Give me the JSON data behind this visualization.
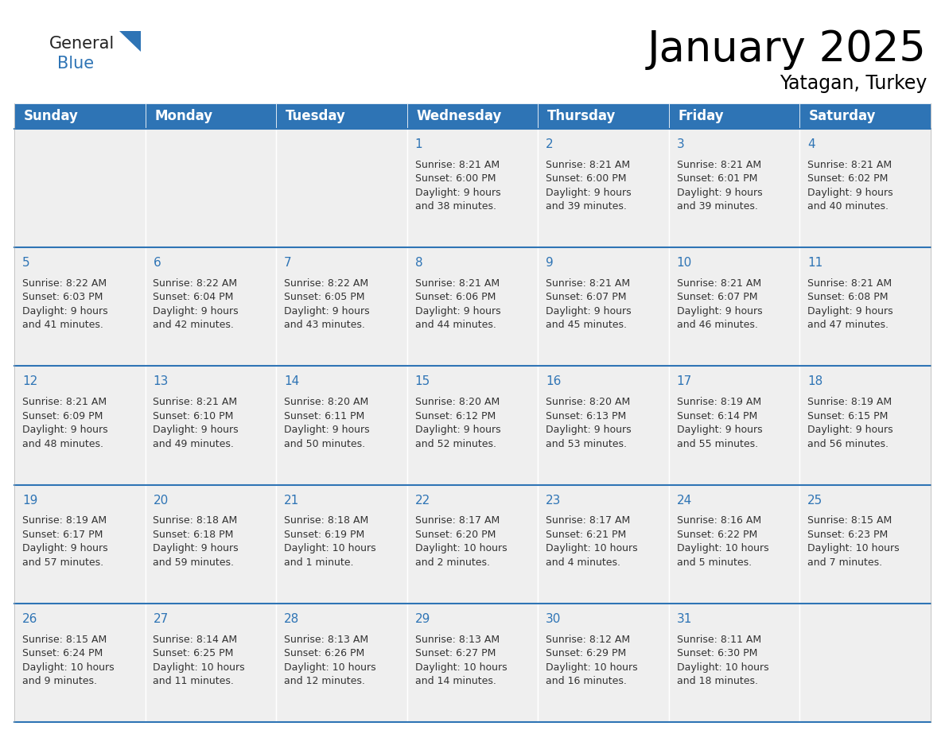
{
  "title": "January 2025",
  "subtitle": "Yatagan, Turkey",
  "days_of_week": [
    "Sunday",
    "Monday",
    "Tuesday",
    "Wednesday",
    "Thursday",
    "Friday",
    "Saturday"
  ],
  "header_bg": "#2E74B5",
  "header_text": "#FFFFFF",
  "cell_bg": "#EFEFEF",
  "row_border_color": "#2E74B5",
  "text_color": "#333333",
  "day_number_color": "#2E74B5",
  "calendar_data": [
    [
      "",
      "",
      "",
      "1\nSunrise: 8:21 AM\nSunset: 6:00 PM\nDaylight: 9 hours\nand 38 minutes.",
      "2\nSunrise: 8:21 AM\nSunset: 6:00 PM\nDaylight: 9 hours\nand 39 minutes.",
      "3\nSunrise: 8:21 AM\nSunset: 6:01 PM\nDaylight: 9 hours\nand 39 minutes.",
      "4\nSunrise: 8:21 AM\nSunset: 6:02 PM\nDaylight: 9 hours\nand 40 minutes."
    ],
    [
      "5\nSunrise: 8:22 AM\nSunset: 6:03 PM\nDaylight: 9 hours\nand 41 minutes.",
      "6\nSunrise: 8:22 AM\nSunset: 6:04 PM\nDaylight: 9 hours\nand 42 minutes.",
      "7\nSunrise: 8:22 AM\nSunset: 6:05 PM\nDaylight: 9 hours\nand 43 minutes.",
      "8\nSunrise: 8:21 AM\nSunset: 6:06 PM\nDaylight: 9 hours\nand 44 minutes.",
      "9\nSunrise: 8:21 AM\nSunset: 6:07 PM\nDaylight: 9 hours\nand 45 minutes.",
      "10\nSunrise: 8:21 AM\nSunset: 6:07 PM\nDaylight: 9 hours\nand 46 minutes.",
      "11\nSunrise: 8:21 AM\nSunset: 6:08 PM\nDaylight: 9 hours\nand 47 minutes."
    ],
    [
      "12\nSunrise: 8:21 AM\nSunset: 6:09 PM\nDaylight: 9 hours\nand 48 minutes.",
      "13\nSunrise: 8:21 AM\nSunset: 6:10 PM\nDaylight: 9 hours\nand 49 minutes.",
      "14\nSunrise: 8:20 AM\nSunset: 6:11 PM\nDaylight: 9 hours\nand 50 minutes.",
      "15\nSunrise: 8:20 AM\nSunset: 6:12 PM\nDaylight: 9 hours\nand 52 minutes.",
      "16\nSunrise: 8:20 AM\nSunset: 6:13 PM\nDaylight: 9 hours\nand 53 minutes.",
      "17\nSunrise: 8:19 AM\nSunset: 6:14 PM\nDaylight: 9 hours\nand 55 minutes.",
      "18\nSunrise: 8:19 AM\nSunset: 6:15 PM\nDaylight: 9 hours\nand 56 minutes."
    ],
    [
      "19\nSunrise: 8:19 AM\nSunset: 6:17 PM\nDaylight: 9 hours\nand 57 minutes.",
      "20\nSunrise: 8:18 AM\nSunset: 6:18 PM\nDaylight: 9 hours\nand 59 minutes.",
      "21\nSunrise: 8:18 AM\nSunset: 6:19 PM\nDaylight: 10 hours\nand 1 minute.",
      "22\nSunrise: 8:17 AM\nSunset: 6:20 PM\nDaylight: 10 hours\nand 2 minutes.",
      "23\nSunrise: 8:17 AM\nSunset: 6:21 PM\nDaylight: 10 hours\nand 4 minutes.",
      "24\nSunrise: 8:16 AM\nSunset: 6:22 PM\nDaylight: 10 hours\nand 5 minutes.",
      "25\nSunrise: 8:15 AM\nSunset: 6:23 PM\nDaylight: 10 hours\nand 7 minutes."
    ],
    [
      "26\nSunrise: 8:15 AM\nSunset: 6:24 PM\nDaylight: 10 hours\nand 9 minutes.",
      "27\nSunrise: 8:14 AM\nSunset: 6:25 PM\nDaylight: 10 hours\nand 11 minutes.",
      "28\nSunrise: 8:13 AM\nSunset: 6:26 PM\nDaylight: 10 hours\nand 12 minutes.",
      "29\nSunrise: 8:13 AM\nSunset: 6:27 PM\nDaylight: 10 hours\nand 14 minutes.",
      "30\nSunrise: 8:12 AM\nSunset: 6:29 PM\nDaylight: 10 hours\nand 16 minutes.",
      "31\nSunrise: 8:11 AM\nSunset: 6:30 PM\nDaylight: 10 hours\nand 18 minutes.",
      ""
    ]
  ],
  "logo_general_color": "#222222",
  "logo_blue_color": "#2E74B5",
  "title_fontsize": 38,
  "subtitle_fontsize": 17,
  "header_fontsize": 12,
  "cell_day_fontsize": 11,
  "cell_text_fontsize": 9
}
